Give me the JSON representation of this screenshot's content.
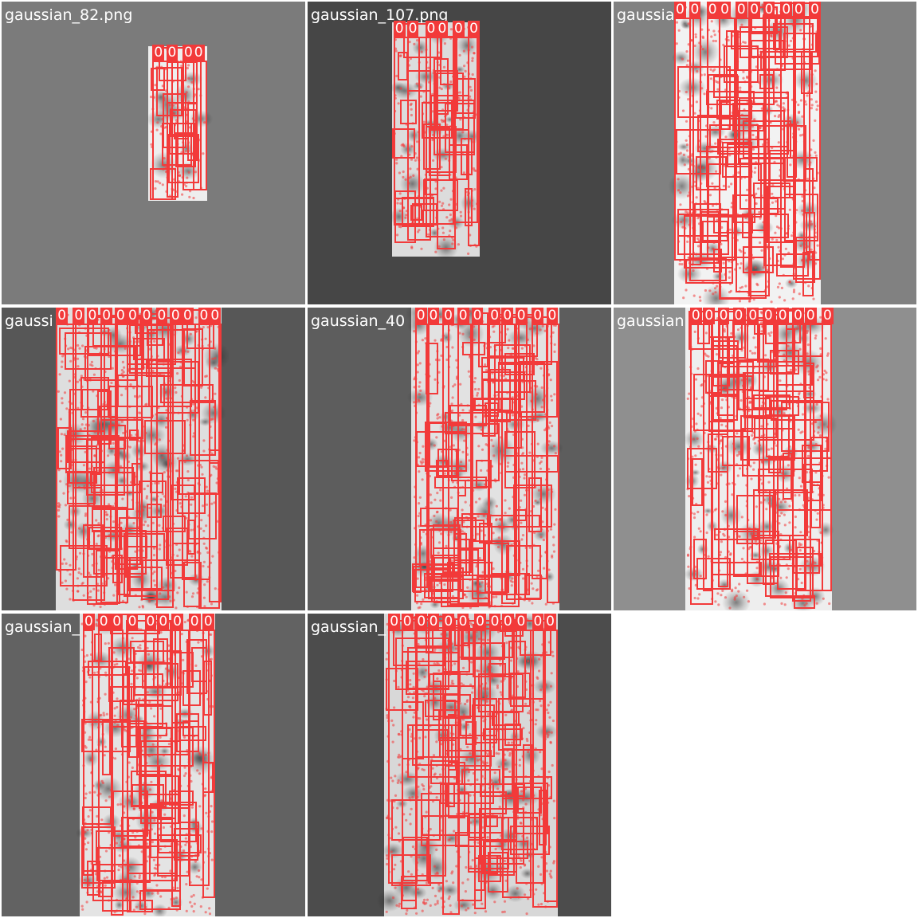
{
  "mosaic": {
    "background": "#ffffff",
    "box_color": "#f23a3a",
    "tiles": [
      {
        "label": "gaussian_82.png",
        "bg": "#7b7b7b",
        "strip": "#eeeeee",
        "label_color": "#ffffff",
        "class_label": "0"
      },
      {
        "label": "gaussian_107.png",
        "bg": "#464646",
        "strip": "#dcdcdc",
        "label_color": "#ffffff",
        "class_label": "0"
      },
      {
        "label": "gaussia",
        "bg": "#818181",
        "strip": "#f2f2f2",
        "label_color": "#ffffff",
        "class_label": "0"
      },
      {
        "label": "gaussi",
        "bg": "#575757",
        "strip": "#dedede",
        "label_color": "#ffffff",
        "class_label": "0"
      },
      {
        "label": "gaussian_40",
        "bg": "#5d5d5d",
        "strip": "#e2e2e2",
        "label_color": "#ffffff",
        "class_label": "0"
      },
      {
        "label": "gaussian",
        "bg": "#8f8f8f",
        "strip": "#eeeeee",
        "label_color": "#ffffff",
        "class_label": "0"
      },
      {
        "label": "gaussian_",
        "bg": "#626262",
        "strip": "#e4e4e4",
        "label_color": "#ffffff",
        "class_label": "0"
      },
      {
        "label": "gaussian_",
        "bg": "#4c4c4c",
        "strip": "#d8d8d8",
        "label_color": "#ffffff",
        "class_label": "0"
      }
    ]
  }
}
